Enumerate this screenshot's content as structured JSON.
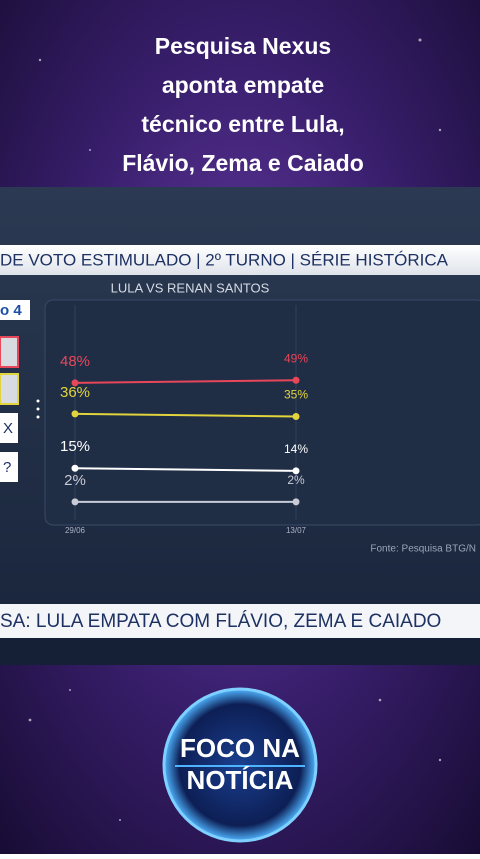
{
  "title_lines": [
    "Pesquisa Nexus",
    "aponta empate",
    "técnico entre Lula,",
    "Flávio, Zema e Caiado"
  ],
  "chart_data": {
    "type": "line",
    "title": "DE VOTO ESTIMULADO | 2º TURNO | SÉRIE HISTÓRICA",
    "subtitle": "LULA VS RENAN SANTOS",
    "categories": [
      "29/06",
      "13/07"
    ],
    "series": [
      {
        "color": "#e8475a",
        "values": [
          48,
          49
        ],
        "value_labels": [
          "48%",
          "49%"
        ]
      },
      {
        "color": "#e2d43c",
        "values": [
          36,
          35
        ],
        "value_labels": [
          "36%",
          "35%"
        ]
      },
      {
        "color": "#ffffff",
        "values": [
          15,
          14
        ],
        "value_labels": [
          "15%",
          "14%"
        ]
      },
      {
        "color": "#c9cbd6",
        "values": [
          2,
          2
        ],
        "value_labels": [
          "2%",
          "2%"
        ]
      }
    ],
    "ylim": [
      -5,
      80
    ]
  },
  "left_panel": {
    "badge": "o 4",
    "icons": [
      "X",
      "?"
    ]
  },
  "source": "Fonte: Pesquisa BTG/N",
  "ticker": "SA: LULA EMPATA COM FLÁVIO, ZEMA E CAIADO",
  "logo": [
    "FOCO NA",
    "NOTÍCIA"
  ]
}
